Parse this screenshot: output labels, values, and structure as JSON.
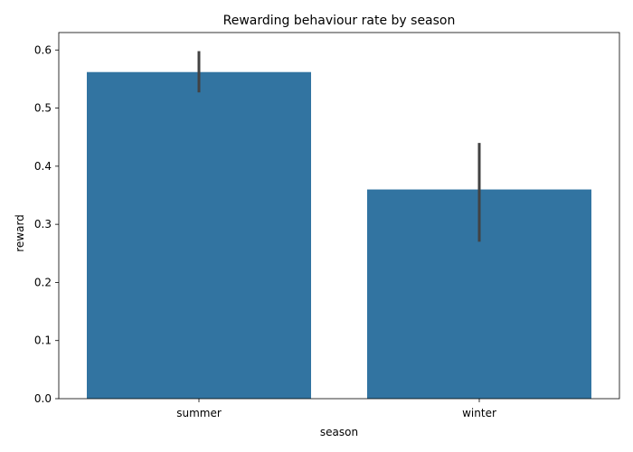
{
  "chart_data": {
    "type": "bar",
    "title": "Rewarding behaviour rate by season",
    "xlabel": "season",
    "ylabel": "reward",
    "categories": [
      "summer",
      "winter"
    ],
    "values": [
      0.562,
      0.36
    ],
    "error_bars": [
      {
        "low": 0.527,
        "high": 0.598
      },
      {
        "low": 0.27,
        "high": 0.44
      }
    ],
    "ylim": [
      0,
      0.63
    ],
    "yticks": [
      "0.0",
      "0.1",
      "0.2",
      "0.3",
      "0.4",
      "0.5",
      "0.6"
    ],
    "bar_color": "#3274a1",
    "errorbar_color": "#424242",
    "grid": false,
    "legend": "none"
  }
}
